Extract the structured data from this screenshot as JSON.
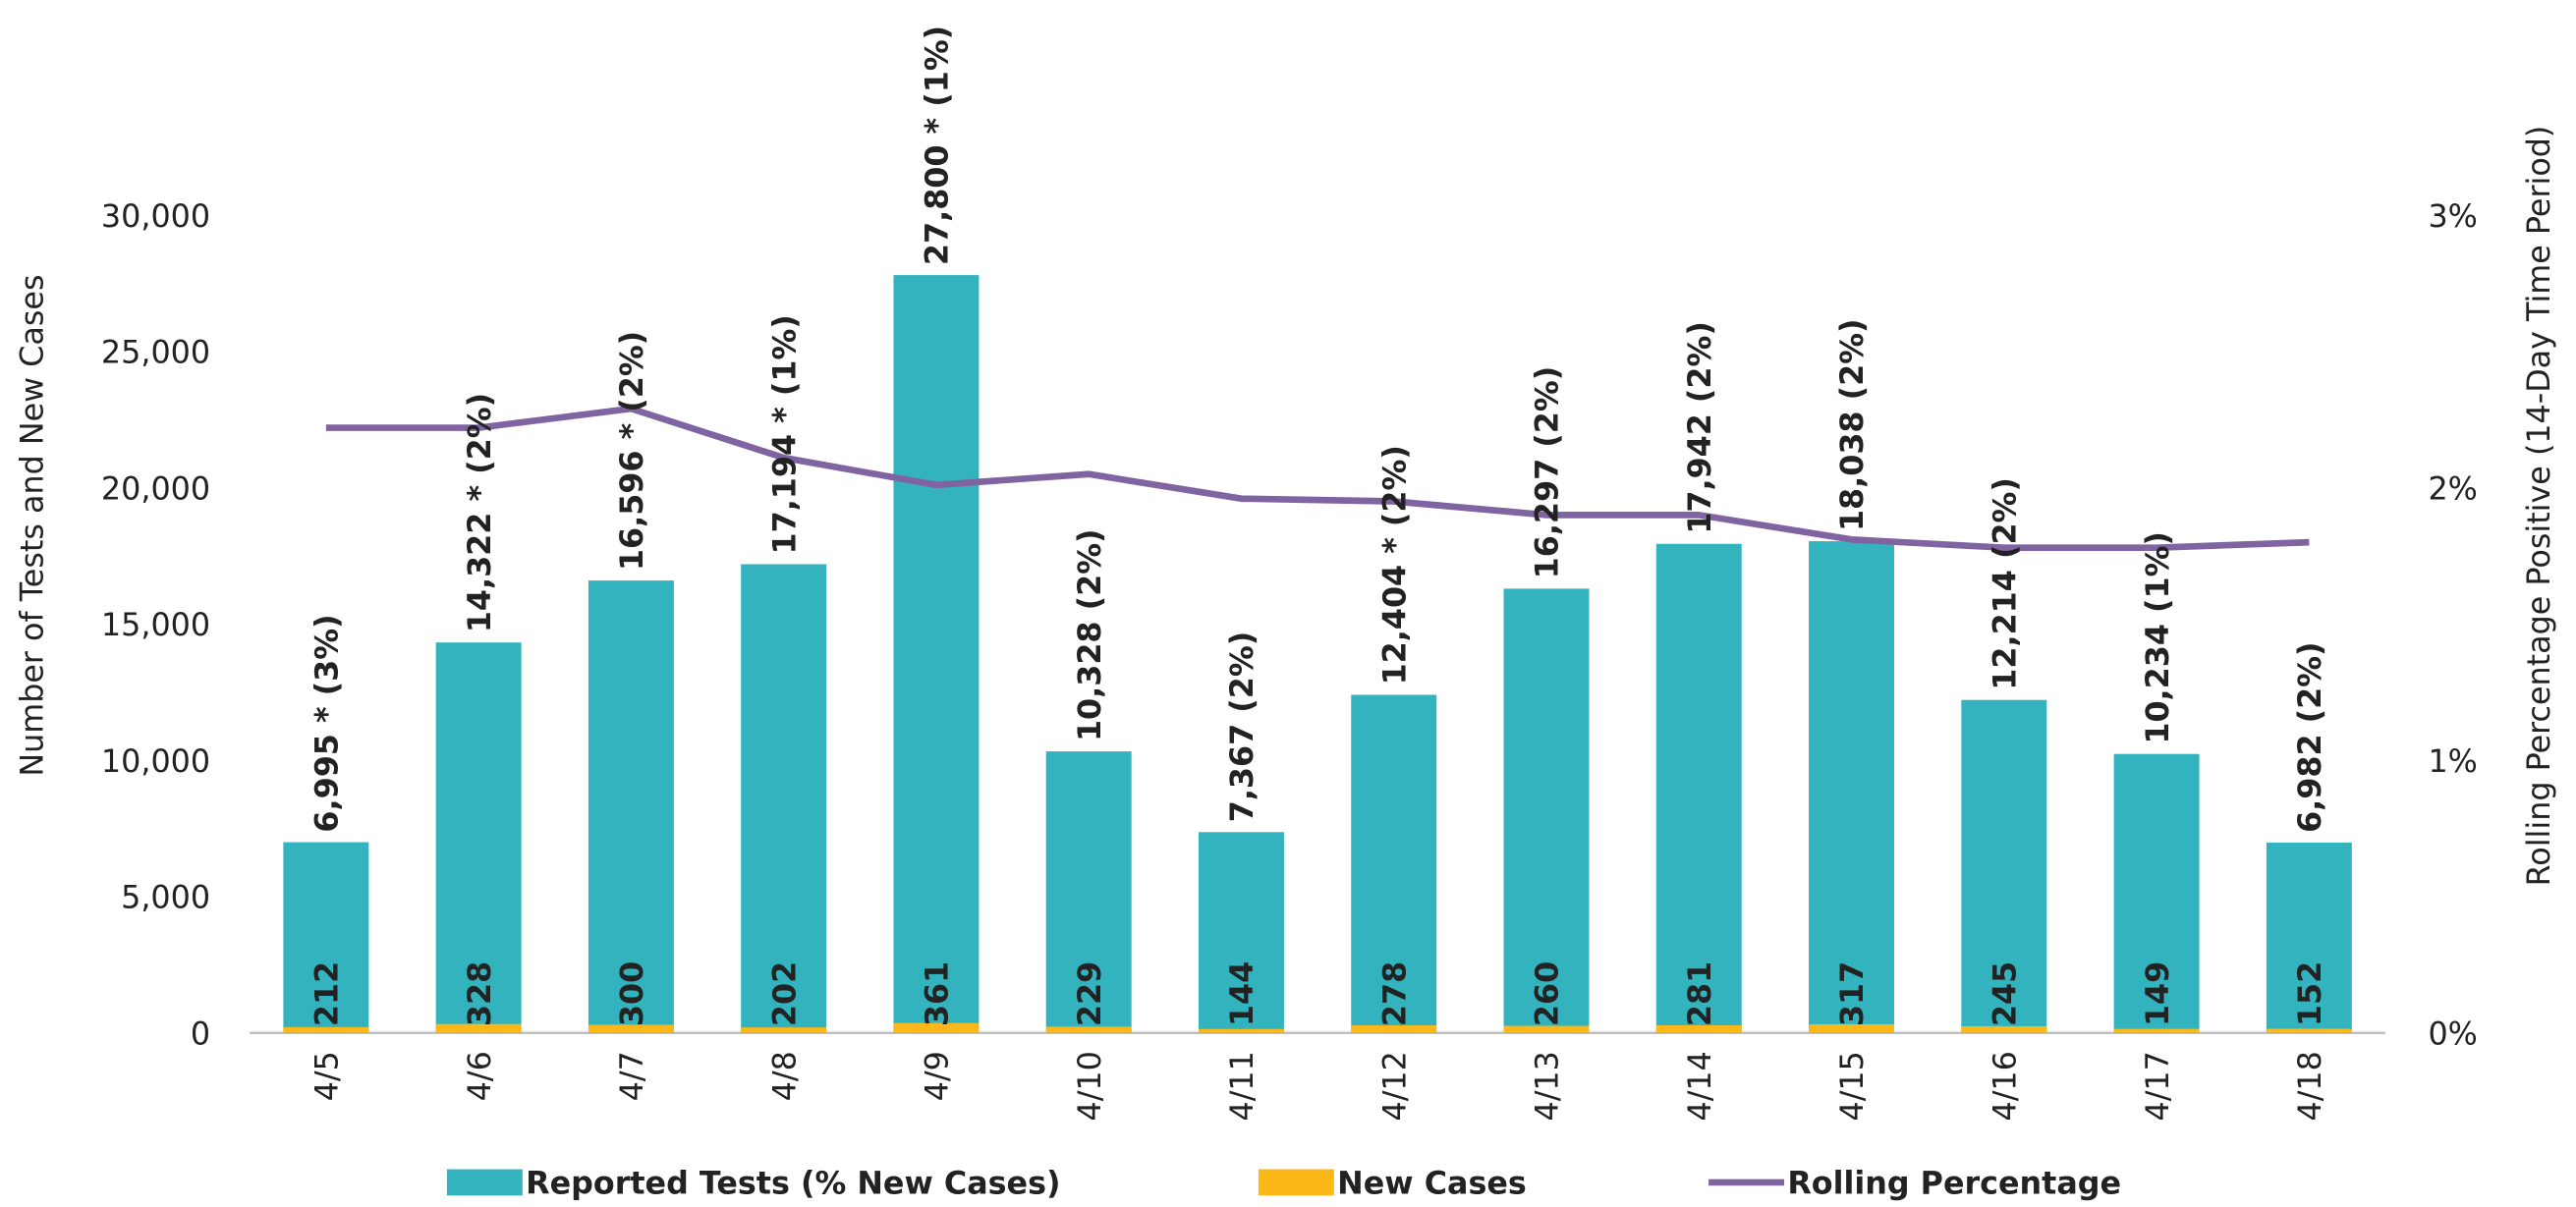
{
  "chart_data": {
    "type": "bar",
    "categories": [
      "4/5",
      "4/6",
      "4/7",
      "4/8",
      "4/9",
      "4/10",
      "4/11",
      "4/12",
      "4/13",
      "4/14",
      "4/15",
      "4/16",
      "4/17",
      "4/18"
    ],
    "series": [
      {
        "name": "Reported Tests (% New Cases)",
        "type": "bar",
        "color": "#33b3bd",
        "values": [
          6995,
          14322,
          16596,
          17194,
          27800,
          10328,
          7367,
          12404,
          16297,
          17942,
          18038,
          12214,
          10234,
          6982
        ],
        "value_labels": [
          "6,995 * (3%)",
          "14,322 * (2%)",
          "16,596 * (2%)",
          "17,194 * (1%)",
          "27,800 * (1%)",
          "10,328  (2%)",
          "7,367  (2%)",
          "12,404 * (2%)",
          "16,297  (2%)",
          "17,942  (2%)",
          "18,038  (2%)",
          "12,214  (2%)",
          "10,234  (1%)",
          "6,982  (2%)"
        ]
      },
      {
        "name": "New Cases",
        "type": "bar",
        "color": "#fbb818",
        "values": [
          212,
          328,
          300,
          202,
          361,
          229,
          144,
          278,
          260,
          281,
          317,
          245,
          149,
          152
        ]
      },
      {
        "name": "Rolling Percentage",
        "type": "line",
        "axis": "y2",
        "color": "#8064a2",
        "values": [
          2.22,
          2.22,
          2.29,
          2.11,
          2.01,
          2.05,
          1.96,
          1.95,
          1.9,
          1.9,
          1.81,
          1.78,
          1.78,
          1.8
        ]
      }
    ],
    "ylabel": "Number of Tests and New Cases",
    "y2label": "Rolling Percentage Positive (14-Day Time Period)",
    "ylim": [
      0,
      30000
    ],
    "yticks": [
      0,
      {
        "value": 5000,
        "label": "5,000"
      },
      {
        "value": 10000,
        "label": "10,000"
      },
      {
        "value": 15000,
        "label": "15,000"
      },
      {
        "value": 20000,
        "label": "20,000"
      },
      {
        "value": 25000,
        "label": "25,000"
      },
      {
        "value": 30000,
        "label": "30,000"
      }
    ],
    "y2lim": [
      0,
      3
    ],
    "y2ticks": [
      {
        "value": 0,
        "label": "0%"
      },
      {
        "value": 1,
        "label": "1%"
      },
      {
        "value": 2,
        "label": "2%"
      },
      {
        "value": 3,
        "label": "3%"
      }
    ],
    "grid": false,
    "legend": "bottom"
  }
}
